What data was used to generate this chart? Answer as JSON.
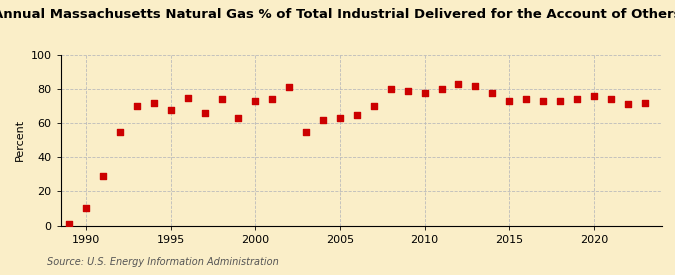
{
  "title": "Annual Massachusetts Natural Gas % of Total Industrial Delivered for the Account of Others",
  "ylabel": "Percent",
  "source": "Source: U.S. Energy Information Administration",
  "years": [
    1989,
    1990,
    1991,
    1992,
    1993,
    1994,
    1995,
    1996,
    1997,
    1998,
    1999,
    2000,
    2001,
    2002,
    2003,
    2004,
    2005,
    2006,
    2007,
    2008,
    2009,
    2010,
    2011,
    2012,
    2013,
    2014,
    2015,
    2016,
    2017,
    2018,
    2019,
    2020,
    2021,
    2022,
    2023
  ],
  "values": [
    1,
    10,
    29,
    55,
    70,
    72,
    68,
    75,
    66,
    74,
    63,
    73,
    74,
    81,
    55,
    62,
    63,
    65,
    70,
    80,
    79,
    78,
    80,
    83,
    82,
    78,
    73,
    74,
    73,
    73,
    74,
    76,
    74,
    71,
    72
  ],
  "xlim": [
    1988.5,
    2024
  ],
  "ylim": [
    0,
    100
  ],
  "yticks": [
    0,
    20,
    40,
    60,
    80,
    100
  ],
  "xticks": [
    1990,
    1995,
    2000,
    2005,
    2010,
    2015,
    2020
  ],
  "marker_color": "#cc0000",
  "marker_size": 16,
  "background_color": "#faeec8",
  "grid_color": "#bbbbbb",
  "title_fontsize": 9.5,
  "label_fontsize": 8,
  "tick_fontsize": 8,
  "source_fontsize": 7
}
